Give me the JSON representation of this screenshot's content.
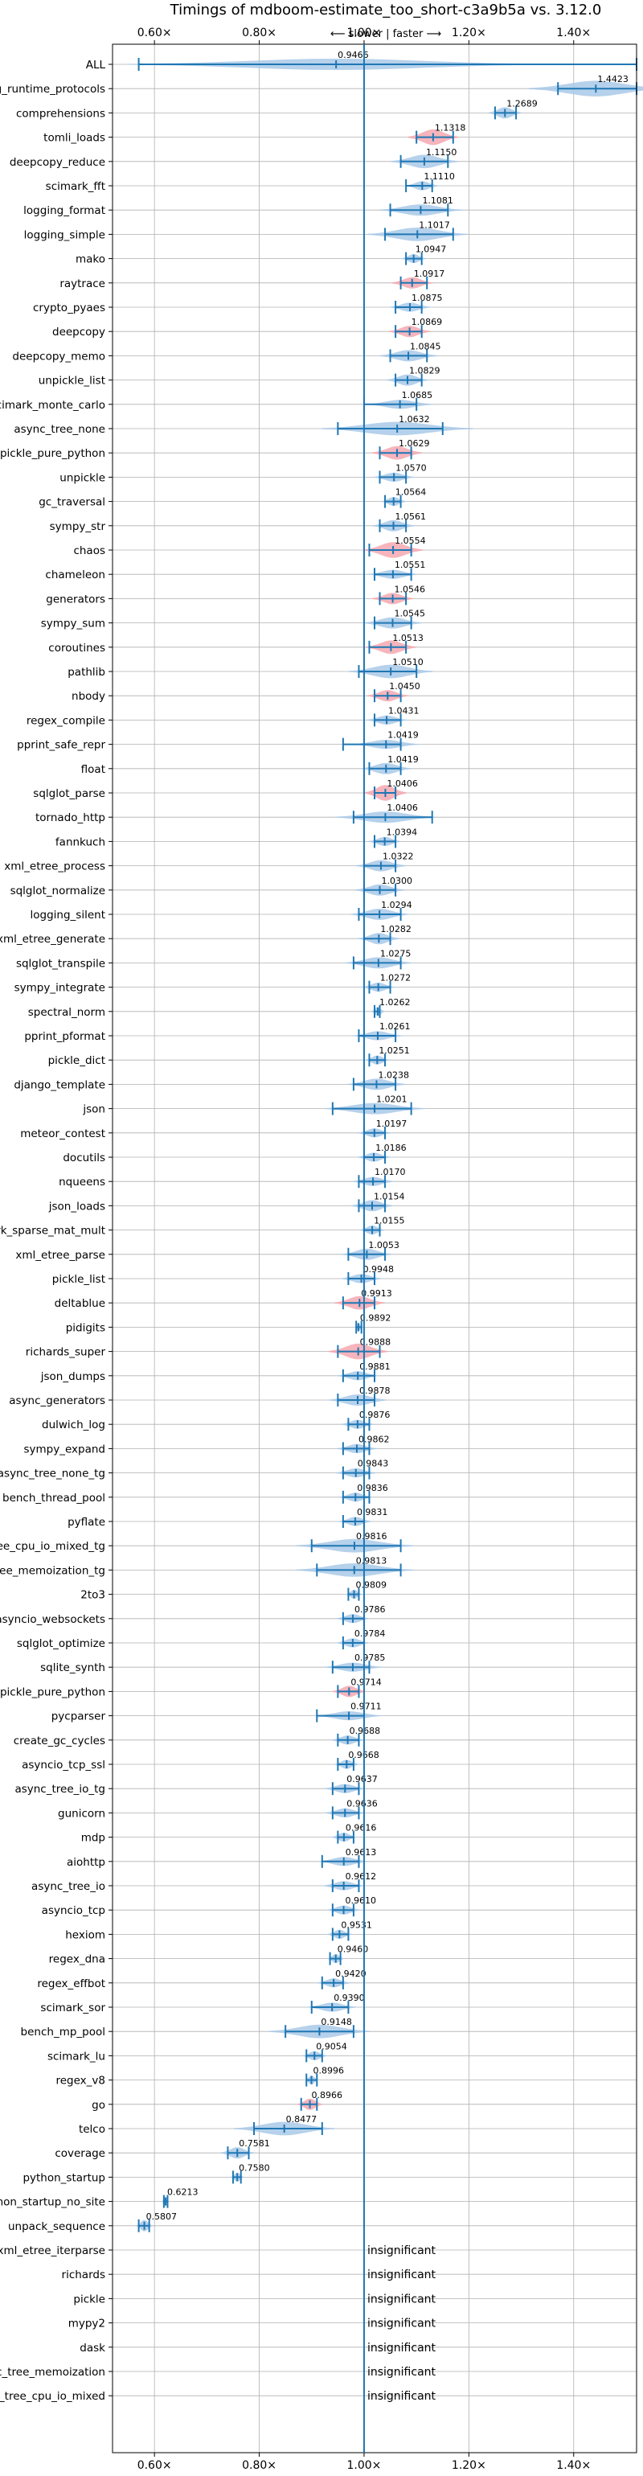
{
  "chart_data": {
    "type": "violin",
    "title": "Timings of mdboom-estimate_too_short-c3a9b5a vs. 3.12.0",
    "subtitle": "⟵ slower | faster ⟶",
    "x_tick_labels": [
      "0.60×",
      "0.80×",
      "1.00×",
      "1.20×",
      "1.40×"
    ],
    "x_ticks": [
      0.6,
      0.8,
      1.0,
      1.2,
      1.4
    ],
    "xlim": [
      0.52,
      1.52
    ],
    "reference_x": 1.0,
    "insignificant_label": "insignificant",
    "benchmarks": [
      {
        "name": "ALL",
        "value": 0.9466,
        "label": "0.9466",
        "lo": 0.57,
        "hi": 1.52,
        "spread": 0.25,
        "width": 0.5
      },
      {
        "name": "typing_runtime_protocols",
        "value": 1.4423,
        "label": "1.4423",
        "lo": 1.37,
        "hi": 1.52,
        "spread": 0.08,
        "width": 0.7
      },
      {
        "name": "comprehensions",
        "value": 1.2689,
        "label": "1.2689",
        "lo": 1.25,
        "hi": 1.29,
        "spread": 0.02,
        "width": 0.5
      },
      {
        "name": "tomli_loads",
        "value": 1.1318,
        "label": "1.1318",
        "lo": 1.1,
        "hi": 1.17,
        "spread": 0.03,
        "width": 0.7,
        "highlight": true
      },
      {
        "name": "deepcopy_reduce",
        "value": 1.115,
        "label": "1.1150",
        "lo": 1.07,
        "hi": 1.16,
        "spread": 0.04,
        "width": 0.6
      },
      {
        "name": "scimark_fft",
        "value": 1.111,
        "label": "1.1110",
        "lo": 1.08,
        "hi": 1.13,
        "spread": 0.02,
        "width": 0.4
      },
      {
        "name": "logging_format",
        "value": 1.1081,
        "label": "1.1081",
        "lo": 1.05,
        "hi": 1.16,
        "spread": 0.05,
        "width": 0.5
      },
      {
        "name": "logging_simple",
        "value": 1.1017,
        "label": "1.1017",
        "lo": 1.04,
        "hi": 1.17,
        "spread": 0.06,
        "width": 0.6
      },
      {
        "name": "mako",
        "value": 1.0947,
        "label": "1.0947",
        "lo": 1.08,
        "hi": 1.11,
        "spread": 0.015,
        "width": 0.4
      },
      {
        "name": "raytrace",
        "value": 1.0917,
        "label": "1.0917",
        "lo": 1.07,
        "hi": 1.12,
        "spread": 0.025,
        "width": 0.5,
        "highlight": true
      },
      {
        "name": "crypto_pyaes",
        "value": 1.0875,
        "label": "1.0875",
        "lo": 1.06,
        "hi": 1.11,
        "spread": 0.025,
        "width": 0.4
      },
      {
        "name": "deepcopy",
        "value": 1.0869,
        "label": "1.0869",
        "lo": 1.06,
        "hi": 1.11,
        "spread": 0.025,
        "width": 0.5,
        "highlight": true
      },
      {
        "name": "deepcopy_memo",
        "value": 1.0845,
        "label": "1.0845",
        "lo": 1.05,
        "hi": 1.12,
        "spread": 0.035,
        "width": 0.5
      },
      {
        "name": "unpickle_list",
        "value": 1.0829,
        "label": "1.0829",
        "lo": 1.06,
        "hi": 1.11,
        "spread": 0.025,
        "width": 0.5
      },
      {
        "name": "scimark_monte_carlo",
        "value": 1.0685,
        "label": "1.0685",
        "lo": 1.0,
        "hi": 1.1,
        "spread": 0.04,
        "width": 0.4
      },
      {
        "name": "async_tree_none",
        "value": 1.0632,
        "label": "1.0632",
        "lo": 0.95,
        "hi": 1.15,
        "spread": 0.09,
        "width": 0.6
      },
      {
        "name": "pickle_pure_python",
        "value": 1.0629,
        "label": "1.0629",
        "lo": 1.03,
        "hi": 1.09,
        "spread": 0.03,
        "width": 0.6,
        "highlight": true
      },
      {
        "name": "unpickle",
        "value": 1.057,
        "label": "1.0570",
        "lo": 1.03,
        "hi": 1.08,
        "spread": 0.025,
        "width": 0.4
      },
      {
        "name": "gc_traversal",
        "value": 1.0564,
        "label": "1.0564",
        "lo": 1.04,
        "hi": 1.07,
        "spread": 0.015,
        "width": 0.4
      },
      {
        "name": "sympy_str",
        "value": 1.0561,
        "label": "1.0561",
        "lo": 1.03,
        "hi": 1.08,
        "spread": 0.025,
        "width": 0.5
      },
      {
        "name": "chaos",
        "value": 1.0554,
        "label": "1.0554",
        "lo": 1.01,
        "hi": 1.09,
        "spread": 0.035,
        "width": 0.7,
        "highlight": true
      },
      {
        "name": "chameleon",
        "value": 1.0551,
        "label": "1.0551",
        "lo": 1.02,
        "hi": 1.09,
        "spread": 0.03,
        "width": 0.4
      },
      {
        "name": "generators",
        "value": 1.0546,
        "label": "1.0546",
        "lo": 1.03,
        "hi": 1.08,
        "spread": 0.025,
        "width": 0.5,
        "highlight": true
      },
      {
        "name": "sympy_sum",
        "value": 1.0545,
        "label": "1.0545",
        "lo": 1.02,
        "hi": 1.09,
        "spread": 0.035,
        "width": 0.5
      },
      {
        "name": "coroutines",
        "value": 1.0513,
        "label": "1.0513",
        "lo": 1.01,
        "hi": 1.08,
        "spread": 0.03,
        "width": 0.6,
        "highlight": true
      },
      {
        "name": "pathlib",
        "value": 1.051,
        "label": "1.0510",
        "lo": 0.99,
        "hi": 1.1,
        "spread": 0.05,
        "width": 0.6
      },
      {
        "name": "nbody",
        "value": 1.045,
        "label": "1.0450",
        "lo": 1.02,
        "hi": 1.07,
        "spread": 0.025,
        "width": 0.5,
        "highlight": true
      },
      {
        "name": "regex_compile",
        "value": 1.0431,
        "label": "1.0431",
        "lo": 1.02,
        "hi": 1.07,
        "spread": 0.025,
        "width": 0.4
      },
      {
        "name": "pprint_safe_repr",
        "value": 1.0419,
        "label": "1.0419",
        "lo": 0.96,
        "hi": 1.07,
        "spread": 0.04,
        "width": 0.4
      },
      {
        "name": "float",
        "value": 1.0419,
        "label": "1.0419",
        "lo": 1.01,
        "hi": 1.07,
        "spread": 0.03,
        "width": 0.5
      },
      {
        "name": "sqlglot_parse",
        "value": 1.0406,
        "label": "1.0406",
        "lo": 1.02,
        "hi": 1.06,
        "spread": 0.025,
        "width": 0.7,
        "highlight": true
      },
      {
        "name": "tornado_http",
        "value": 1.0406,
        "label": "1.0406",
        "lo": 0.98,
        "hi": 1.13,
        "spread": 0.06,
        "width": 0.5
      },
      {
        "name": "fannkuch",
        "value": 1.0394,
        "label": "1.0394",
        "lo": 1.02,
        "hi": 1.06,
        "spread": 0.02,
        "width": 0.4
      },
      {
        "name": "xml_etree_process",
        "value": 1.0322,
        "label": "1.0322",
        "lo": 1.0,
        "hi": 1.06,
        "spread": 0.03,
        "width": 0.5
      },
      {
        "name": "sqlglot_normalize",
        "value": 1.03,
        "label": "1.0300",
        "lo": 1.0,
        "hi": 1.06,
        "spread": 0.03,
        "width": 0.5
      },
      {
        "name": "logging_silent",
        "value": 1.0294,
        "label": "1.0294",
        "lo": 0.99,
        "hi": 1.07,
        "spread": 0.035,
        "width": 0.5
      },
      {
        "name": "xml_etree_generate",
        "value": 1.0282,
        "label": "1.0282",
        "lo": 1.0,
        "hi": 1.05,
        "spread": 0.025,
        "width": 0.5
      },
      {
        "name": "sqlglot_transpile",
        "value": 1.0275,
        "label": "1.0275",
        "lo": 0.98,
        "hi": 1.07,
        "spread": 0.04,
        "width": 0.5
      },
      {
        "name": "sympy_integrate",
        "value": 1.0272,
        "label": "1.0272",
        "lo": 1.01,
        "hi": 1.05,
        "spread": 0.02,
        "width": 0.4
      },
      {
        "name": "spectral_norm",
        "value": 1.0262,
        "label": "1.0262",
        "lo": 1.02,
        "hi": 1.03,
        "spread": 0.008,
        "width": 0.4
      },
      {
        "name": "pprint_pformat",
        "value": 1.0261,
        "label": "1.0261",
        "lo": 0.99,
        "hi": 1.06,
        "spread": 0.03,
        "width": 0.4
      },
      {
        "name": "pickle_dict",
        "value": 1.0251,
        "label": "1.0251",
        "lo": 1.01,
        "hi": 1.04,
        "spread": 0.015,
        "width": 0.4
      },
      {
        "name": "django_template",
        "value": 1.0238,
        "label": "1.0238",
        "lo": 0.98,
        "hi": 1.06,
        "spread": 0.035,
        "width": 0.5
      },
      {
        "name": "json",
        "value": 1.0201,
        "label": "1.0201",
        "lo": 0.94,
        "hi": 1.09,
        "spread": 0.06,
        "width": 0.5
      },
      {
        "name": "meteor_contest",
        "value": 1.0197,
        "label": "1.0197",
        "lo": 1.0,
        "hi": 1.04,
        "spread": 0.02,
        "width": 0.4
      },
      {
        "name": "docutils",
        "value": 1.0186,
        "label": "1.0186",
        "lo": 1.0,
        "hi": 1.04,
        "spread": 0.02,
        "width": 0.4
      },
      {
        "name": "nqueens",
        "value": 1.017,
        "label": "1.0170",
        "lo": 0.99,
        "hi": 1.04,
        "spread": 0.025,
        "width": 0.4
      },
      {
        "name": "json_loads",
        "value": 1.0154,
        "label": "1.0154",
        "lo": 0.99,
        "hi": 1.04,
        "spread": 0.025,
        "width": 0.5
      },
      {
        "name": "scimark_sparse_mat_mult",
        "value": 1.0155,
        "label": "1.0155",
        "lo": 1.0,
        "hi": 1.03,
        "spread": 0.015,
        "width": 0.4
      },
      {
        "name": "xml_etree_parse",
        "value": 1.0053,
        "label": "1.0053",
        "lo": 0.97,
        "hi": 1.04,
        "spread": 0.03,
        "width": 0.5
      },
      {
        "name": "pickle_list",
        "value": 0.9948,
        "label": "0.9948",
        "lo": 0.97,
        "hi": 1.02,
        "spread": 0.025,
        "width": 0.4
      },
      {
        "name": "deltablue",
        "value": 0.9913,
        "label": "0.9913",
        "lo": 0.96,
        "hi": 1.02,
        "spread": 0.03,
        "width": 0.6,
        "highlight": true
      },
      {
        "name": "pidigits",
        "value": 0.9892,
        "label": "0.9892",
        "lo": 0.985,
        "hi": 0.995,
        "spread": 0.004,
        "width": 0.4
      },
      {
        "name": "richards_super",
        "value": 0.9888,
        "label": "0.9888",
        "lo": 0.95,
        "hi": 1.03,
        "spread": 0.035,
        "width": 0.7,
        "highlight": true
      },
      {
        "name": "json_dumps",
        "value": 0.9881,
        "label": "0.9881",
        "lo": 0.96,
        "hi": 1.02,
        "spread": 0.025,
        "width": 0.4
      },
      {
        "name": "async_generators",
        "value": 0.9878,
        "label": "0.9878",
        "lo": 0.95,
        "hi": 1.02,
        "spread": 0.035,
        "width": 0.5
      },
      {
        "name": "dulwich_log",
        "value": 0.9876,
        "label": "0.9876",
        "lo": 0.97,
        "hi": 1.01,
        "spread": 0.02,
        "width": 0.4
      },
      {
        "name": "sympy_expand",
        "value": 0.9862,
        "label": "0.9862",
        "lo": 0.96,
        "hi": 1.01,
        "spread": 0.025,
        "width": 0.4
      },
      {
        "name": "async_tree_none_tg",
        "value": 0.9843,
        "label": "0.9843",
        "lo": 0.96,
        "hi": 1.01,
        "spread": 0.025,
        "width": 0.4
      },
      {
        "name": "bench_thread_pool",
        "value": 0.9836,
        "label": "0.9836",
        "lo": 0.96,
        "hi": 1.01,
        "spread": 0.02,
        "width": 0.4
      },
      {
        "name": "pyflate",
        "value": 0.9831,
        "label": "0.9831",
        "lo": 0.96,
        "hi": 1.0,
        "spread": 0.02,
        "width": 0.4
      },
      {
        "name": "async_tree_cpu_io_mixed_tg",
        "value": 0.9816,
        "label": "0.9816",
        "lo": 0.9,
        "hi": 1.07,
        "spread": 0.07,
        "width": 0.6
      },
      {
        "name": "async_tree_memoization_tg",
        "value": 0.9813,
        "label": "0.9813",
        "lo": 0.91,
        "hi": 1.07,
        "spread": 0.07,
        "width": 0.6
      },
      {
        "name": "2to3",
        "value": 0.9809,
        "label": "0.9809",
        "lo": 0.97,
        "hi": 0.99,
        "spread": 0.01,
        "width": 0.4
      },
      {
        "name": "asyncio_websockets",
        "value": 0.9786,
        "label": "0.9786",
        "lo": 0.96,
        "hi": 1.0,
        "spread": 0.02,
        "width": 0.4
      },
      {
        "name": "sqlglot_optimize",
        "value": 0.9784,
        "label": "0.9784",
        "lo": 0.96,
        "hi": 1.0,
        "spread": 0.02,
        "width": 0.4
      },
      {
        "name": "sqlite_synth",
        "value": 0.9785,
        "label": "0.9785",
        "lo": 0.94,
        "hi": 1.01,
        "spread": 0.035,
        "width": 0.4
      },
      {
        "name": "unpickle_pure_python",
        "value": 0.9714,
        "label": "0.9714",
        "lo": 0.95,
        "hi": 0.99,
        "spread": 0.02,
        "width": 0.5,
        "highlight": true
      },
      {
        "name": "pycparser",
        "value": 0.9711,
        "label": "0.9711",
        "lo": 0.91,
        "hi": 1.0,
        "spread": 0.04,
        "width": 0.4
      },
      {
        "name": "create_gc_cycles",
        "value": 0.9688,
        "label": "0.9688",
        "lo": 0.95,
        "hi": 0.99,
        "spread": 0.02,
        "width": 0.4
      },
      {
        "name": "asyncio_tcp_ssl",
        "value": 0.9668,
        "label": "0.9668",
        "lo": 0.95,
        "hi": 0.98,
        "spread": 0.015,
        "width": 0.4
      },
      {
        "name": "async_tree_io_tg",
        "value": 0.9637,
        "label": "0.9637",
        "lo": 0.94,
        "hi": 0.99,
        "spread": 0.025,
        "width": 0.4
      },
      {
        "name": "gunicorn",
        "value": 0.9636,
        "label": "0.9636",
        "lo": 0.94,
        "hi": 0.99,
        "spread": 0.025,
        "width": 0.4
      },
      {
        "name": "mdp",
        "value": 0.9616,
        "label": "0.9616",
        "lo": 0.95,
        "hi": 0.98,
        "spread": 0.015,
        "width": 0.4
      },
      {
        "name": "aiohttp",
        "value": 0.9613,
        "label": "0.9613",
        "lo": 0.92,
        "hi": 0.99,
        "spread": 0.03,
        "width": 0.4
      },
      {
        "name": "async_tree_io",
        "value": 0.9612,
        "label": "0.9612",
        "lo": 0.94,
        "hi": 0.99,
        "spread": 0.025,
        "width": 0.4
      },
      {
        "name": "asyncio_tcp",
        "value": 0.961,
        "label": "0.9610",
        "lo": 0.94,
        "hi": 0.98,
        "spread": 0.02,
        "width": 0.4
      },
      {
        "name": "hexiom",
        "value": 0.9531,
        "label": "0.9531",
        "lo": 0.94,
        "hi": 0.97,
        "spread": 0.015,
        "width": 0.4
      },
      {
        "name": "regex_dna",
        "value": 0.946,
        "label": "0.9460",
        "lo": 0.935,
        "hi": 0.955,
        "spread": 0.01,
        "width": 0.4
      },
      {
        "name": "regex_effbot",
        "value": 0.942,
        "label": "0.9420",
        "lo": 0.92,
        "hi": 0.96,
        "spread": 0.02,
        "width": 0.4
      },
      {
        "name": "scimark_sor",
        "value": 0.939,
        "label": "0.9390",
        "lo": 0.9,
        "hi": 0.97,
        "spread": 0.03,
        "width": 0.4
      },
      {
        "name": "bench_mp_pool",
        "value": 0.9148,
        "label": "0.9148",
        "lo": 0.85,
        "hi": 0.98,
        "spread": 0.06,
        "width": 0.6
      },
      {
        "name": "scimark_lu",
        "value": 0.9054,
        "label": "0.9054",
        "lo": 0.89,
        "hi": 0.92,
        "spread": 0.015,
        "width": 0.4
      },
      {
        "name": "regex_v8",
        "value": 0.8996,
        "label": "0.8996",
        "lo": 0.89,
        "hi": 0.91,
        "spread": 0.008,
        "width": 0.4
      },
      {
        "name": "go",
        "value": 0.8966,
        "label": "0.8966",
        "lo": 0.88,
        "hi": 0.91,
        "spread": 0.015,
        "width": 0.5,
        "highlight": true
      },
      {
        "name": "telco",
        "value": 0.8477,
        "label": "0.8477",
        "lo": 0.79,
        "hi": 0.92,
        "spread": 0.06,
        "width": 0.6
      },
      {
        "name": "coverage",
        "value": 0.7581,
        "label": "0.7581",
        "lo": 0.74,
        "hi": 0.78,
        "spread": 0.02,
        "width": 0.5
      },
      {
        "name": "python_startup",
        "value": 0.758,
        "label": "0.7580",
        "lo": 0.75,
        "hi": 0.765,
        "spread": 0.008,
        "width": 0.4
      },
      {
        "name": "python_startup_no_site",
        "value": 0.6213,
        "label": "0.6213",
        "lo": 0.618,
        "hi": 0.625,
        "spread": 0.004,
        "width": 0.4
      },
      {
        "name": "unpack_sequence",
        "value": 0.5807,
        "label": "0.5807",
        "lo": 0.57,
        "hi": 0.59,
        "spread": 0.01,
        "width": 0.5
      },
      {
        "name": "xml_etree_iterparse",
        "insignificant": true
      },
      {
        "name": "richards",
        "insignificant": true
      },
      {
        "name": "pickle",
        "insignificant": true
      },
      {
        "name": "mypy2",
        "insignificant": true
      },
      {
        "name": "dask",
        "insignificant": true
      },
      {
        "name": "async_tree_memoization",
        "insignificant": true
      },
      {
        "name": "async_tree_cpu_io_mixed",
        "insignificant": true
      }
    ],
    "colors": {
      "line": "#1f77b4",
      "violin": "#a9c9e8",
      "highlight": "#f4a8b0",
      "grid": "#b0b0b0",
      "axes": "#000000"
    },
    "grid": true
  }
}
